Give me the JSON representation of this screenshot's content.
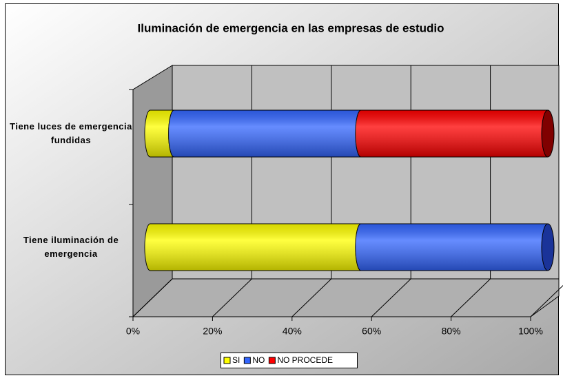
{
  "chart_data": {
    "type": "bar3d_stacked_horizontal",
    "title": "Iluminación de emergencia en las empresas de estudio",
    "categories": [
      "Tiene luces de emergencia fundidas",
      "Tiene iluminación de emergencia"
    ],
    "series": [
      {
        "name": "SI",
        "color": "#ffff00",
        "values": [
          6,
          53
        ]
      },
      {
        "name": "NO",
        "color": "#3366ff",
        "values": [
          47,
          47
        ]
      },
      {
        "name": "NO PROCEDE",
        "color": "#ff0000",
        "values": [
          47,
          0
        ]
      }
    ],
    "xlim": [
      0,
      100
    ],
    "xticks": [
      {
        "value": 0,
        "label": "0%"
      },
      {
        "value": 20,
        "label": "20%"
      },
      {
        "value": 40,
        "label": "40%"
      },
      {
        "value": 60,
        "label": "60%"
      },
      {
        "value": 80,
        "label": "80%"
      },
      {
        "value": 100,
        "label": "100%"
      }
    ],
    "grid": true,
    "legend": "bottom"
  }
}
